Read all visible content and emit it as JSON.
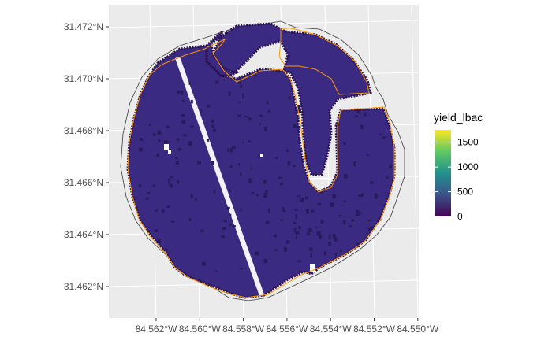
{
  "plot": {
    "panel_color": "#ebebeb",
    "grid_color": "#ffffff",
    "axis_text_color": "#4d4d4d",
    "y_ticks": [
      {
        "value": 31.472,
        "label": "31.472°N"
      },
      {
        "value": 31.47,
        "label": "31.470°N"
      },
      {
        "value": 31.468,
        "label": "31.468°N"
      },
      {
        "value": 31.466,
        "label": "31.466°N"
      },
      {
        "value": 31.464,
        "label": "31.464°N"
      },
      {
        "value": 31.462,
        "label": "31.462°N"
      }
    ],
    "x_ticks": [
      {
        "value": -84.562,
        "label": "84.562°W"
      },
      {
        "value": -84.56,
        "label": "84.560°W"
      },
      {
        "value": -84.558,
        "label": "84.558°W"
      },
      {
        "value": -84.556,
        "label": "84.556°W"
      },
      {
        "value": -84.554,
        "label": "84.554°W"
      },
      {
        "value": -84.552,
        "label": "84.552°W"
      },
      {
        "value": -84.55,
        "label": "84.550°W"
      }
    ]
  },
  "map_layers": {
    "yield_fill_color": "#3b2a82",
    "yield_dark_cell_color": "#2a1a5e",
    "yield_edge_color": "#2b1150",
    "boundary_inner_color": "#ff9800",
    "boundary_outer_color": "#3c3c3c"
  },
  "legend": {
    "title": "yield_lbac",
    "breaks": [
      {
        "value": 1500,
        "label": "1500"
      },
      {
        "value": 1000,
        "label": "1000"
      },
      {
        "value": 500,
        "label": "500"
      },
      {
        "value": 0,
        "label": "0"
      }
    ],
    "min": 0,
    "max": 1750,
    "colors": [
      "#440154",
      "#3b528b",
      "#21918c",
      "#5ec962",
      "#fde725"
    ]
  }
}
